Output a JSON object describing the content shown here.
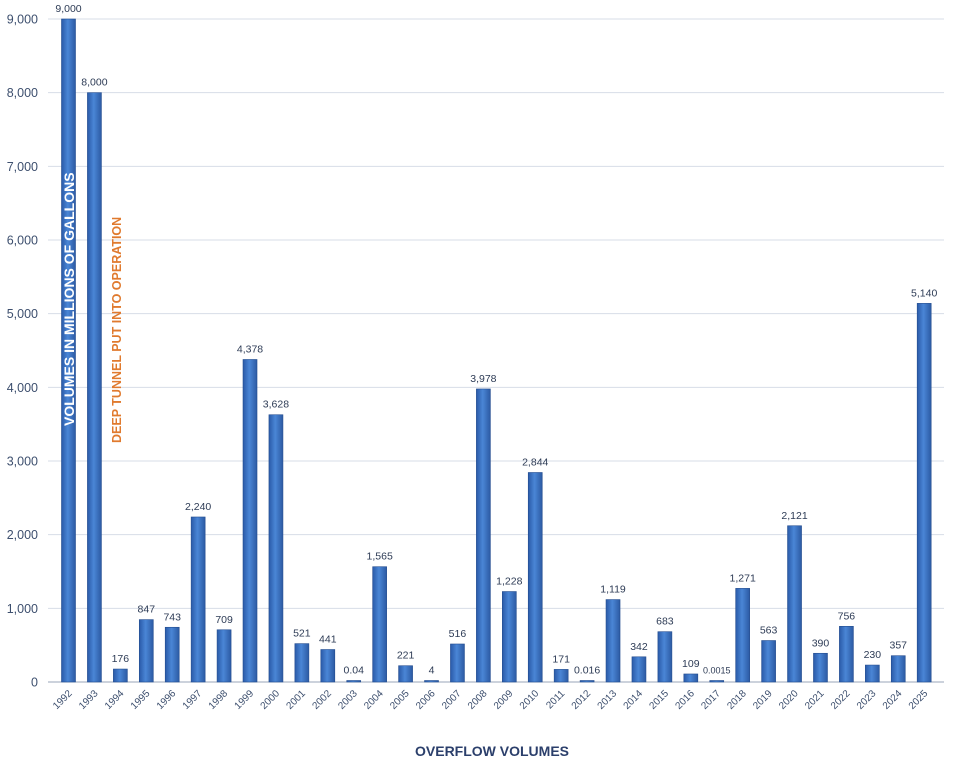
{
  "chart_data": {
    "type": "bar",
    "xlabel": "OVERFLOW VOLUMES",
    "ylabel": "VOLUMES IN MILLIONS OF GALLONS",
    "annotation": "DEEP TUNNEL PUT INTO OPERATION",
    "ylim": [
      0,
      9000
    ],
    "yticks": [
      "0",
      "1,000",
      "2,000",
      "3,000",
      "4,000",
      "5,000",
      "6,000",
      "7,000",
      "8,000",
      "9,000"
    ],
    "grid": true,
    "bar_color": "#3a6ec0",
    "categories": [
      "1992",
      "1993",
      "1994",
      "1995",
      "1996",
      "1997",
      "1998",
      "1999",
      "2000",
      "2001",
      "2002",
      "2003",
      "2004",
      "2005",
      "2006",
      "2007",
      "2008",
      "2009",
      "2010",
      "2011",
      "2012",
      "2013",
      "2014",
      "2015",
      "2016",
      "2017",
      "2018",
      "2019",
      "2020",
      "2021",
      "2022",
      "2023",
      "2024",
      "2025"
    ],
    "values": [
      9000,
      8000,
      176,
      847,
      743,
      2240,
      709,
      4378,
      3628,
      521,
      441,
      0.04,
      1565,
      221,
      4,
      516,
      3978,
      1228,
      2844,
      171,
      0.016,
      1119,
      342,
      683,
      109,
      0.0015,
      1271,
      563,
      2121,
      390,
      756,
      230,
      357,
      5140
    ],
    "data_labels": [
      "9,000",
      "8,000",
      "176",
      "847",
      "743",
      "2,240",
      "709",
      "4,378",
      "3,628",
      "521",
      "441",
      "0.04",
      "1,565",
      "221",
      "4",
      "516",
      "3,978",
      "1,228",
      "2,844",
      "171",
      "0.016",
      "1,119",
      "342",
      "683",
      "109",
      "0.0015",
      "1,271",
      "563",
      "2,121",
      "390",
      "756",
      "230",
      "357",
      "5,140"
    ]
  }
}
